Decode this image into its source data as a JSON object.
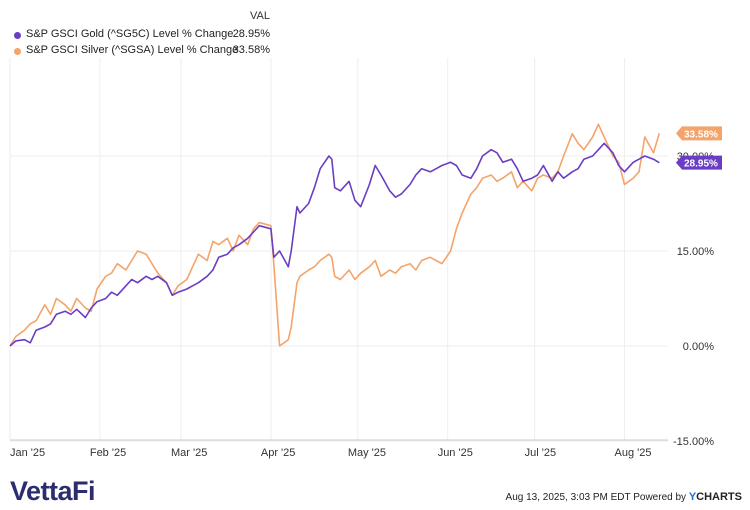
{
  "legend": {
    "header": "VAL",
    "items": [
      {
        "name": "S&P GSCI Gold (^SG5C) Level % Change",
        "value": "28.95%",
        "color": "#6a3dc4"
      },
      {
        "name": "S&P GSCI Silver (^SGSA) Level % Change",
        "value": "33.58%",
        "color": "#f4a46a"
      }
    ]
  },
  "footer": {
    "logo": "VettaFi",
    "timestamp": "Aug 13, 2025, 3:03 PM EDT Powered by",
    "brand_y": "Y",
    "brand_rest": "CHARTS"
  },
  "chart_data": {
    "type": "line",
    "x_tick_labels": [
      "Jan '25",
      "Feb '25",
      "Mar '25",
      "Apr '25",
      "May '25",
      "Jun '25",
      "Jul '25",
      "Aug '25"
    ],
    "y_tick_labels": [
      "30.00%",
      "15.00%",
      "0.00%",
      "-15.00%"
    ],
    "y_ticks": [
      30,
      15,
      0,
      -15
    ],
    "ylim": [
      -15,
      40
    ],
    "grid": true,
    "end_labels": [
      "33.58%",
      "28.95%"
    ],
    "series": [
      {
        "name": "S&P GSCI Gold (^SG5C) Level % Change",
        "color": "#6a3dc4",
        "x": [
          "2025-01-01",
          "2025-01-03",
          "2025-01-06",
          "2025-01-08",
          "2025-01-10",
          "2025-01-13",
          "2025-01-15",
          "2025-01-17",
          "2025-01-20",
          "2025-01-22",
          "2025-01-24",
          "2025-01-27",
          "2025-01-29",
          "2025-01-31",
          "2025-02-03",
          "2025-02-05",
          "2025-02-07",
          "2025-02-10",
          "2025-02-12",
          "2025-02-14",
          "2025-02-17",
          "2025-02-19",
          "2025-02-21",
          "2025-02-24",
          "2025-02-26",
          "2025-02-28",
          "2025-03-03",
          "2025-03-05",
          "2025-03-07",
          "2025-03-10",
          "2025-03-12",
          "2025-03-14",
          "2025-03-17",
          "2025-03-19",
          "2025-03-21",
          "2025-03-24",
          "2025-03-26",
          "2025-03-28",
          "2025-04-01",
          "2025-04-02",
          "2025-04-04",
          "2025-04-07",
          "2025-04-08",
          "2025-04-10",
          "2025-04-11",
          "2025-04-14",
          "2025-04-16",
          "2025-04-18",
          "2025-04-21",
          "2025-04-22",
          "2025-04-23",
          "2025-04-25",
          "2025-04-28",
          "2025-04-30",
          "2025-05-02",
          "2025-05-05",
          "2025-05-07",
          "2025-05-09",
          "2025-05-12",
          "2025-05-14",
          "2025-05-16",
          "2025-05-19",
          "2025-05-21",
          "2025-05-23",
          "2025-05-26",
          "2025-05-28",
          "2025-05-30",
          "2025-06-02",
          "2025-06-04",
          "2025-06-06",
          "2025-06-09",
          "2025-06-11",
          "2025-06-13",
          "2025-06-16",
          "2025-06-18",
          "2025-06-20",
          "2025-06-23",
          "2025-06-25",
          "2025-06-27",
          "2025-06-30",
          "2025-07-02",
          "2025-07-04",
          "2025-07-07",
          "2025-07-09",
          "2025-07-11",
          "2025-07-14",
          "2025-07-16",
          "2025-07-18",
          "2025-07-21",
          "2025-07-23",
          "2025-07-25",
          "2025-07-28",
          "2025-07-30",
          "2025-08-01",
          "2025-08-04",
          "2025-08-06",
          "2025-08-08",
          "2025-08-11",
          "2025-08-13"
        ],
        "y": [
          0.0,
          0.8,
          1.0,
          0.5,
          2.5,
          3.0,
          3.5,
          5.0,
          5.5,
          5.0,
          5.8,
          4.5,
          6.0,
          7.0,
          7.5,
          8.5,
          8.0,
          9.5,
          10.5,
          10.0,
          11.0,
          10.5,
          11.0,
          10.0,
          8.0,
          8.5,
          9.0,
          9.5,
          10.0,
          11.0,
          12.0,
          14.0,
          14.5,
          15.5,
          16.0,
          17.0,
          18.0,
          19.0,
          18.5,
          14.0,
          15.0,
          12.5,
          15.0,
          22.0,
          21.0,
          22.5,
          25.0,
          28.0,
          30.0,
          29.5,
          25.0,
          24.5,
          26.0,
          23.0,
          22.0,
          25.5,
          28.5,
          27.0,
          24.5,
          23.5,
          24.0,
          25.5,
          27.0,
          28.0,
          27.5,
          28.0,
          28.5,
          29.0,
          28.5,
          27.0,
          26.5,
          28.0,
          30.0,
          31.0,
          30.5,
          29.0,
          29.5,
          28.0,
          26.0,
          26.5,
          27.0,
          28.5,
          26.0,
          27.5,
          26.5,
          27.5,
          28.0,
          29.5,
          30.0,
          31.0,
          32.0,
          30.5,
          28.5,
          27.5,
          29.0,
          29.5,
          30.0,
          29.5,
          28.95
        ]
      },
      {
        "name": "S&P GSCI Silver (^SGSA) Level % Change",
        "color": "#f4a46a",
        "x": [
          "2025-01-01",
          "2025-01-03",
          "2025-01-06",
          "2025-01-08",
          "2025-01-10",
          "2025-01-13",
          "2025-01-15",
          "2025-01-17",
          "2025-01-20",
          "2025-01-22",
          "2025-01-24",
          "2025-01-27",
          "2025-01-29",
          "2025-01-31",
          "2025-02-03",
          "2025-02-05",
          "2025-02-07",
          "2025-02-10",
          "2025-02-12",
          "2025-02-14",
          "2025-02-17",
          "2025-02-19",
          "2025-02-21",
          "2025-02-24",
          "2025-02-26",
          "2025-02-28",
          "2025-03-03",
          "2025-03-05",
          "2025-03-07",
          "2025-03-10",
          "2025-03-12",
          "2025-03-14",
          "2025-03-17",
          "2025-03-19",
          "2025-03-21",
          "2025-03-24",
          "2025-03-26",
          "2025-03-28",
          "2025-04-01",
          "2025-04-02",
          "2025-04-04",
          "2025-04-07",
          "2025-04-08",
          "2025-04-10",
          "2025-04-11",
          "2025-04-14",
          "2025-04-16",
          "2025-04-18",
          "2025-04-21",
          "2025-04-22",
          "2025-04-23",
          "2025-04-25",
          "2025-04-28",
          "2025-04-30",
          "2025-05-02",
          "2025-05-05",
          "2025-05-07",
          "2025-05-09",
          "2025-05-12",
          "2025-05-14",
          "2025-05-16",
          "2025-05-19",
          "2025-05-21",
          "2025-05-23",
          "2025-05-26",
          "2025-05-28",
          "2025-05-30",
          "2025-06-02",
          "2025-06-04",
          "2025-06-06",
          "2025-06-09",
          "2025-06-11",
          "2025-06-13",
          "2025-06-16",
          "2025-06-18",
          "2025-06-20",
          "2025-06-23",
          "2025-06-25",
          "2025-06-27",
          "2025-06-30",
          "2025-07-02",
          "2025-07-04",
          "2025-07-07",
          "2025-07-09",
          "2025-07-11",
          "2025-07-14",
          "2025-07-16",
          "2025-07-18",
          "2025-07-21",
          "2025-07-23",
          "2025-07-25",
          "2025-07-28",
          "2025-07-30",
          "2025-08-01",
          "2025-08-04",
          "2025-08-06",
          "2025-08-08",
          "2025-08-11",
          "2025-08-13"
        ],
        "y": [
          0.0,
          1.5,
          2.5,
          3.5,
          4.0,
          6.5,
          5.0,
          7.5,
          6.5,
          5.5,
          7.5,
          6.0,
          5.5,
          9.0,
          11.0,
          11.5,
          13.0,
          12.0,
          13.5,
          15.0,
          14.5,
          13.0,
          11.5,
          10.0,
          8.0,
          9.5,
          10.5,
          12.5,
          14.5,
          13.5,
          16.5,
          16.0,
          17.0,
          15.0,
          17.5,
          16.0,
          18.5,
          19.5,
          19.0,
          13.0,
          0.0,
          1.0,
          3.0,
          10.0,
          11.0,
          12.0,
          12.5,
          13.5,
          14.5,
          14.0,
          11.0,
          10.5,
          12.0,
          10.5,
          11.5,
          12.5,
          13.5,
          11.0,
          12.0,
          11.5,
          12.5,
          13.0,
          12.0,
          13.5,
          14.0,
          13.5,
          13.0,
          15.0,
          18.5,
          21.0,
          24.0,
          25.0,
          26.5,
          27.0,
          26.0,
          26.5,
          27.5,
          25.0,
          26.0,
          24.5,
          26.5,
          27.0,
          26.5,
          27.5,
          30.0,
          33.5,
          32.0,
          31.0,
          33.0,
          35.0,
          33.0,
          30.0,
          29.0,
          25.5,
          26.5,
          27.5,
          33.0,
          30.5,
          33.58
        ]
      }
    ]
  }
}
